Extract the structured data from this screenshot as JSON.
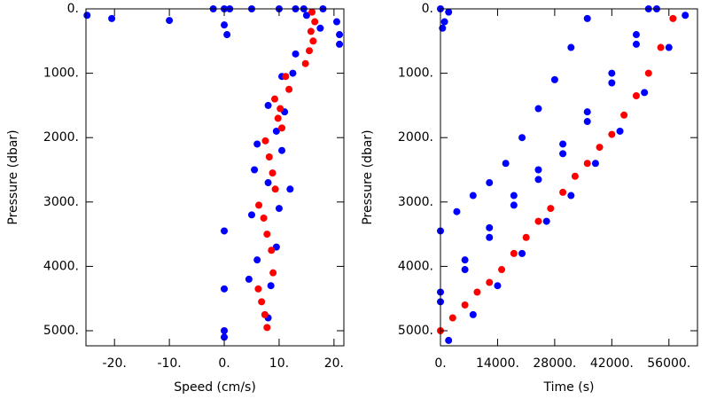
{
  "chart_data": [
    {
      "type": "scatter",
      "xlabel": "Speed (cm/s)",
      "ylabel": "Pressure (dbar)",
      "xlim": [
        -25.2,
        21.8
      ],
      "ylim": [
        5234,
        0
      ],
      "xticks": [
        {
          "value": -20,
          "label": "-20."
        },
        {
          "value": -10,
          "label": "-10."
        },
        {
          "value": 0,
          "label": "0."
        },
        {
          "value": 10,
          "label": "10."
        },
        {
          "value": 20,
          "label": "20."
        }
      ],
      "yticks": [
        {
          "value": 0,
          "label": "0."
        },
        {
          "value": 1000,
          "label": "1000."
        },
        {
          "value": 2000,
          "label": "2000."
        },
        {
          "value": 3000,
          "label": "3000."
        },
        {
          "value": 4000,
          "label": "4000."
        },
        {
          "value": 5000,
          "label": "5000."
        }
      ],
      "series": [
        {
          "color": "#0000ff",
          "x": [
            -25,
            -20.5,
            -10,
            -2,
            0,
            1,
            0,
            0.5,
            5,
            10,
            13,
            14.5,
            18,
            20.5,
            21,
            21,
            15,
            17.5,
            13,
            10.5,
            12.5,
            8,
            11,
            9.5,
            6,
            10.5,
            12,
            5.5,
            8,
            10,
            5,
            9.5,
            6,
            8.5,
            4.5,
            8,
            0,
            0,
            0,
            0
          ],
          "values": [
            100,
            150,
            180,
            0,
            0,
            0,
            250,
            400,
            0,
            0,
            0,
            0,
            0,
            200,
            400,
            550,
            100,
            300,
            700,
            1050,
            1000,
            1500,
            1600,
            1900,
            2100,
            2200,
            2800,
            2500,
            2700,
            3100,
            3200,
            3700,
            3900,
            4300,
            4200,
            4800,
            3450,
            4350,
            5000,
            5100
          ]
        },
        {
          "color": "#ff0000",
          "x": [
            16,
            16.5,
            15.8,
            16.2,
            15.5,
            14.8,
            11.2,
            11.8,
            9.2,
            10.2,
            9.8,
            10.5,
            7.5,
            8.2,
            8.8,
            9.3,
            6.3,
            7.2,
            7.8,
            8.6,
            8.9,
            6.2,
            6.8,
            7.4,
            7.8
          ],
          "values": [
            50,
            200,
            350,
            500,
            650,
            850,
            1050,
            1250,
            1400,
            1550,
            1700,
            1850,
            2050,
            2300,
            2550,
            2800,
            3050,
            3250,
            3500,
            3750,
            4100,
            4350,
            4550,
            4750,
            4950
          ]
        }
      ]
    },
    {
      "type": "scatter",
      "xlabel": "Time (s)",
      "ylabel": "Pressure (dbar)",
      "xlim": [
        0,
        63000
      ],
      "ylim": [
        5234,
        0
      ],
      "xticks": [
        {
          "value": 0,
          "label": "0."
        },
        {
          "value": 14000,
          "label": "14000."
        },
        {
          "value": 28000,
          "label": "28000."
        },
        {
          "value": 42000,
          "label": "42000."
        },
        {
          "value": 56000,
          "label": "56000."
        }
      ],
      "yticks": [
        {
          "value": 0,
          "label": "0."
        },
        {
          "value": 1000,
          "label": "1000."
        },
        {
          "value": 2000,
          "label": "2000."
        },
        {
          "value": 3000,
          "label": "3000."
        },
        {
          "value": 4000,
          "label": "4000."
        },
        {
          "value": 5000,
          "label": "5000."
        }
      ],
      "series": [
        {
          "color": "#0000ff",
          "x": [
            0,
            4000,
            8000,
            12000,
            16000,
            20000,
            24000,
            28000,
            32000,
            36000,
            0,
            6000,
            12000,
            18000,
            24000,
            30000,
            36000,
            42000,
            48000,
            51000,
            0,
            6000,
            12000,
            18000,
            24000,
            30000,
            36000,
            42000,
            48000,
            53000,
            2000,
            8000,
            14000,
            20000,
            26000,
            32000,
            38000,
            44000,
            50000,
            56000,
            60000,
            0,
            1000,
            2000,
            500
          ],
          "values": [
            3450,
            3150,
            2900,
            2700,
            2400,
            2000,
            1550,
            1100,
            600,
            150,
            4400,
            3900,
            3400,
            2900,
            2500,
            2100,
            1600,
            1000,
            400,
            0,
            4550,
            4050,
            3550,
            3050,
            2650,
            2250,
            1750,
            1150,
            550,
            0,
            5150,
            4750,
            4300,
            3800,
            3300,
            2900,
            2400,
            1900,
            1300,
            600,
            100,
            0,
            200,
            50,
            300
          ]
        },
        {
          "color": "#ff0000",
          "x": [
            0,
            3000,
            6000,
            9000,
            12000,
            15000,
            18000,
            21000,
            24000,
            27000,
            30000,
            33000,
            36000,
            39000,
            42000,
            45000,
            48000,
            51000,
            54000,
            57000
          ],
          "values": [
            5000,
            4800,
            4600,
            4400,
            4250,
            4050,
            3800,
            3550,
            3300,
            3100,
            2850,
            2600,
            2400,
            2150,
            1950,
            1650,
            1350,
            1000,
            600,
            150
          ]
        }
      ]
    }
  ]
}
